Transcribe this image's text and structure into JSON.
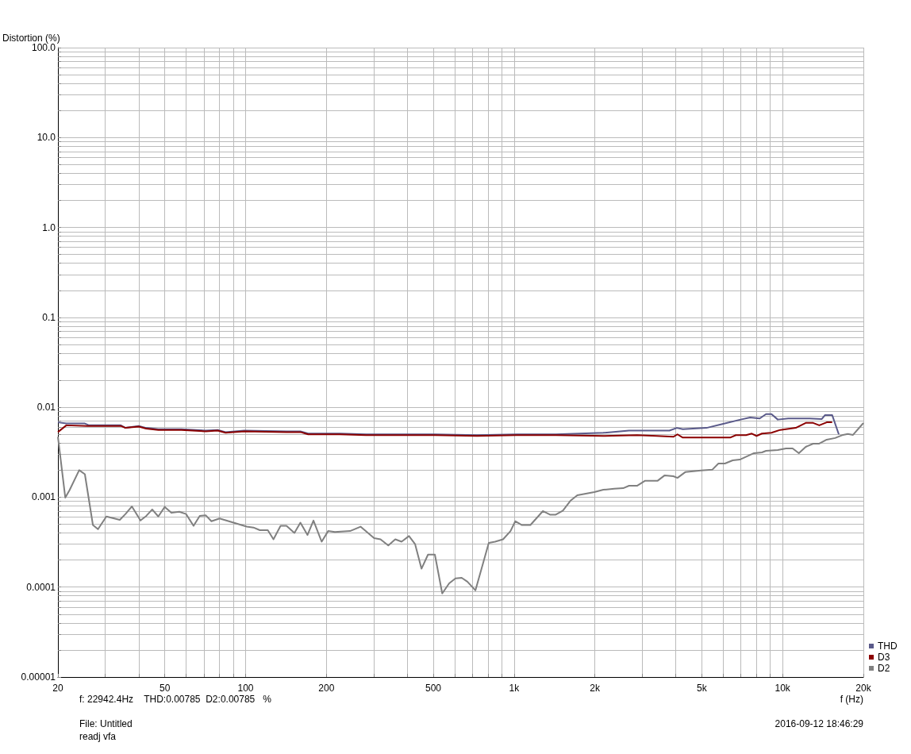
{
  "chart_data": {
    "type": "line",
    "ylabel": "Distortion (%)",
    "xlabel": "f (Hz)",
    "log": "xy",
    "grid": true,
    "legend": "bottom right",
    "xlim": [
      20,
      20000
    ],
    "xticks": [
      20,
      {
        "value": 30,
        "label": null
      },
      {
        "value": 40,
        "label": null
      },
      50,
      {
        "value": 60,
        "label": null
      },
      {
        "value": 70,
        "label": null
      },
      {
        "value": 80,
        "label": null
      },
      {
        "value": 90,
        "label": null
      },
      100,
      200,
      {
        "value": 300,
        "label": null
      },
      {
        "value": 400,
        "label": null
      },
      500,
      {
        "value": 600,
        "label": null
      },
      {
        "value": 700,
        "label": null
      },
      {
        "value": 800,
        "label": null
      },
      {
        "value": 900,
        "label": null
      },
      {
        "value": 1000,
        "label": "1k"
      },
      {
        "value": 2000,
        "label": "2k"
      },
      {
        "value": 3000,
        "label": null
      },
      {
        "value": 4000,
        "label": null
      },
      {
        "value": 5000,
        "label": "5k"
      },
      {
        "value": 6000,
        "label": null
      },
      {
        "value": 7000,
        "label": null
      },
      {
        "value": 8000,
        "label": null
      },
      {
        "value": 9000,
        "label": null
      },
      {
        "value": 10000,
        "label": "10k"
      },
      {
        "value": 20000,
        "label": "20k"
      }
    ],
    "ylim": [
      1e-05,
      100
    ],
    "yticks": [
      {
        "value": 1e-05,
        "label": "0.00001"
      },
      {
        "value": 2e-05,
        "label": null
      },
      {
        "value": 3e-05,
        "label": null
      },
      {
        "value": 4e-05,
        "label": null
      },
      {
        "value": 5e-05,
        "label": null
      },
      {
        "value": 6e-05,
        "label": null
      },
      {
        "value": 7e-05,
        "label": null
      },
      {
        "value": 8e-05,
        "label": null
      },
      {
        "value": 9e-05,
        "label": null
      },
      0.0001,
      {
        "value": 0.0002,
        "label": null
      },
      {
        "value": 0.0003,
        "label": null
      },
      {
        "value": 0.0004,
        "label": null
      },
      {
        "value": 0.0005,
        "label": null
      },
      {
        "value": 0.0006,
        "label": null
      },
      {
        "value": 0.0007,
        "label": null
      },
      {
        "value": 0.0008,
        "label": null
      },
      {
        "value": 0.0009,
        "label": null
      },
      0.001,
      {
        "value": 0.002,
        "label": null
      },
      {
        "value": 0.003,
        "label": null
      },
      {
        "value": 0.004,
        "label": null
      },
      {
        "value": 0.005,
        "label": null
      },
      {
        "value": 0.006,
        "label": null
      },
      {
        "value": 0.007,
        "label": null
      },
      {
        "value": 0.008,
        "label": null
      },
      {
        "value": 0.009,
        "label": null
      },
      0.01,
      {
        "value": 0.02,
        "label": null
      },
      {
        "value": 0.03,
        "label": null
      },
      {
        "value": 0.04,
        "label": null
      },
      {
        "value": 0.05,
        "label": null
      },
      {
        "value": 0.06,
        "label": null
      },
      {
        "value": 0.07,
        "label": null
      },
      {
        "value": 0.08,
        "label": null
      },
      {
        "value": 0.09,
        "label": null
      },
      0.1,
      {
        "value": 0.2,
        "label": null
      },
      {
        "value": 0.3,
        "label": null
      },
      {
        "value": 0.4,
        "label": null
      },
      {
        "value": 0.5,
        "label": null
      },
      {
        "value": 0.6,
        "label": null
      },
      {
        "value": 0.7,
        "label": null
      },
      {
        "value": 0.8,
        "label": null
      },
      {
        "value": 0.9,
        "label": null
      },
      {
        "value": 1,
        "label": "1.0"
      },
      {
        "value": 2,
        "label": null
      },
      {
        "value": 3,
        "label": null
      },
      {
        "value": 4,
        "label": null
      },
      {
        "value": 5,
        "label": null
      },
      {
        "value": 6,
        "label": null
      },
      {
        "value": 7,
        "label": null
      },
      {
        "value": 8,
        "label": null
      },
      {
        "value": 9,
        "label": null
      },
      {
        "value": 10,
        "label": "10.0"
      },
      {
        "value": 20,
        "label": null
      },
      {
        "value": 30,
        "label": null
      },
      {
        "value": 40,
        "label": null
      },
      {
        "value": 50,
        "label": null
      },
      {
        "value": 60,
        "label": null
      },
      {
        "value": 70,
        "label": null
      },
      {
        "value": 80,
        "label": null
      },
      {
        "value": 90,
        "label": null
      },
      {
        "value": 100,
        "label": "100.0"
      }
    ],
    "series": [
      {
        "name": "THD",
        "color": "#5a5a8a",
        "x": [
          20,
          21.5,
          25.2,
          26.1,
          34.3,
          35.7,
          40,
          42.6,
          47.3,
          57.6,
          71,
          78.7,
          84.2,
          99,
          142,
          160,
          171,
          224,
          281,
          507,
          727,
          1020,
          1430,
          2150,
          2680,
          3790,
          4040,
          4250,
          5210,
          5970,
          6980,
          7570,
          8220,
          8680,
          9090,
          9600,
          10500,
          12600,
          14000,
          14400,
          15300,
          16200
        ],
        "values": [
          0.0068,
          0.0066,
          0.0066,
          0.0063,
          0.0063,
          0.0059,
          0.0062,
          0.0059,
          0.0057,
          0.0057,
          0.0055,
          0.0056,
          0.0053,
          0.0055,
          0.0054,
          0.0054,
          0.0051,
          0.0051,
          0.005,
          0.005,
          0.0049,
          0.005,
          0.005,
          0.0052,
          0.0055,
          0.0055,
          0.0059,
          0.0057,
          0.0059,
          0.0065,
          0.0073,
          0.0077,
          0.0075,
          0.0084,
          0.0084,
          0.0073,
          0.0075,
          0.0075,
          0.0074,
          0.0082,
          0.0082,
          0.005
        ]
      },
      {
        "name": "D3",
        "color": "#8b0000",
        "x": [
          20,
          21.5,
          25.8,
          34.3,
          35.7,
          40,
          42.6,
          47.3,
          57.6,
          71,
          78.7,
          84.2,
          99,
          142,
          160,
          171,
          224,
          281,
          507,
          727,
          1020,
          1430,
          2150,
          2870,
          3400,
          3920,
          4060,
          4250,
          5580,
          6380,
          6700,
          7310,
          7680,
          8000,
          8380,
          9090,
          9800,
          11200,
          12200,
          13000,
          13700,
          14600,
          15300
        ],
        "values": [
          0.0053,
          0.0063,
          0.0062,
          0.0062,
          0.0059,
          0.0061,
          0.0058,
          0.0056,
          0.0056,
          0.0054,
          0.0055,
          0.0052,
          0.0054,
          0.0053,
          0.0053,
          0.005,
          0.005,
          0.0049,
          0.0049,
          0.0048,
          0.0049,
          0.0049,
          0.0048,
          0.0049,
          0.0048,
          0.0047,
          0.005,
          0.0046,
          0.0046,
          0.0046,
          0.0049,
          0.0049,
          0.0051,
          0.0048,
          0.0051,
          0.0052,
          0.0056,
          0.0059,
          0.0067,
          0.0067,
          0.0063,
          0.0068,
          0.0068
        ]
      },
      {
        "name": "D2",
        "color": "#808080",
        "x": [
          20,
          21.3,
          22.1,
          24.0,
          25.2,
          27.0,
          28.2,
          30.3,
          34.0,
          35.7,
          37.7,
          40.6,
          42.7,
          44.9,
          47.3,
          50.0,
          53,
          56.6,
          60,
          64,
          67.5,
          71,
          74.6,
          80,
          101,
          107,
          113,
          121,
          127,
          135,
          142,
          152,
          160,
          170,
          179,
          192,
          203,
          215,
          245,
          268,
          301,
          318,
          340,
          361,
          381,
          406,
          428,
          452,
          478,
          507,
          540,
          573,
          605,
          638,
          670,
          718,
          805,
          850,
          910,
          970,
          1010,
          1070,
          1150,
          1280,
          1360,
          1430,
          1520,
          1620,
          1720,
          1990,
          2150,
          2360,
          2550,
          2680,
          2870,
          3070,
          3420,
          3640,
          3920,
          4060,
          4340,
          4970,
          5470,
          5770,
          6100,
          6520,
          6930,
          7830,
          8380,
          8680,
          9600,
          10300,
          10900,
          11500,
          12200,
          13000,
          13700,
          14600,
          15700,
          16800,
          17500,
          18300,
          20000
        ],
        "values": [
          0.0047,
          0.00099,
          0.0012,
          0.002,
          0.0018,
          0.00049,
          0.00044,
          0.00061,
          0.00056,
          0.00065,
          0.00079,
          0.00055,
          0.00062,
          0.00073,
          0.00061,
          0.00078,
          0.00067,
          0.00069,
          0.00065,
          0.00048,
          0.00062,
          0.00063,
          0.00054,
          0.00058,
          0.00047,
          0.00046,
          0.00043,
          0.00043,
          0.00034,
          0.00048,
          0.00048,
          0.0004,
          0.00052,
          0.00038,
          0.00055,
          0.00032,
          0.00042,
          0.00041,
          0.00042,
          0.00047,
          0.00035,
          0.00034,
          0.00029,
          0.00034,
          0.00032,
          0.00037,
          0.0003,
          0.00016,
          0.00023,
          0.00023,
          8.5e-05,
          0.00011,
          0.000125,
          0.000127,
          0.000115,
          9.2e-05,
          0.00031,
          0.00032,
          0.00034,
          0.00042,
          0.00054,
          0.00049,
          0.00049,
          0.0007,
          0.00064,
          0.00064,
          0.00071,
          0.00091,
          0.00105,
          0.00114,
          0.00121,
          0.00124,
          0.00126,
          0.00134,
          0.00134,
          0.00152,
          0.00152,
          0.00175,
          0.00171,
          0.00164,
          0.0019,
          0.00198,
          0.00202,
          0.00237,
          0.00237,
          0.00257,
          0.00262,
          0.00309,
          0.00315,
          0.00328,
          0.00335,
          0.00349,
          0.00349,
          0.00309,
          0.00363,
          0.00394,
          0.00394,
          0.00436,
          0.00455,
          0.00493,
          0.00504,
          0.00493,
          0.00668
        ]
      }
    ],
    "annotations": [
      "f: 22942.4Hz    THD:0.00785  D2:0.00785   %",
      "File: Untitled",
      "readj vfa",
      "2016-09-12 18:46:29"
    ]
  }
}
